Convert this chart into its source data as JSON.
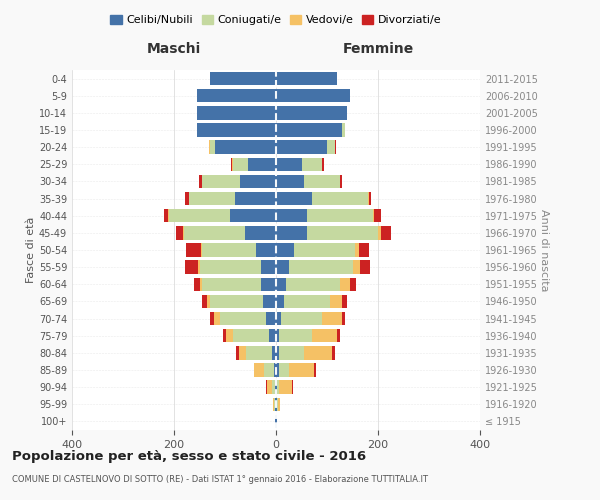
{
  "age_groups": [
    "100+",
    "95-99",
    "90-94",
    "85-89",
    "80-84",
    "75-79",
    "70-74",
    "65-69",
    "60-64",
    "55-59",
    "50-54",
    "45-49",
    "40-44",
    "35-39",
    "30-34",
    "25-29",
    "20-24",
    "15-19",
    "10-14",
    "5-9",
    "0-4"
  ],
  "birth_years": [
    "≤ 1915",
    "1916-1920",
    "1921-1925",
    "1926-1930",
    "1931-1935",
    "1936-1940",
    "1941-1945",
    "1946-1950",
    "1951-1955",
    "1956-1960",
    "1961-1965",
    "1966-1970",
    "1971-1975",
    "1976-1980",
    "1981-1985",
    "1986-1990",
    "1991-1995",
    "1996-2000",
    "2001-2005",
    "2006-2010",
    "2011-2015"
  ],
  "maschi": {
    "celibi": [
      1,
      1,
      2,
      4,
      8,
      14,
      20,
      25,
      30,
      30,
      40,
      60,
      90,
      80,
      70,
      55,
      120,
      155,
      155,
      155,
      130
    ],
    "coniugati": [
      0,
      2,
      5,
      20,
      50,
      70,
      90,
      105,
      115,
      120,
      105,
      120,
      120,
      90,
      75,
      30,
      10,
      0,
      0,
      0,
      0
    ],
    "vedovi": [
      0,
      3,
      10,
      20,
      15,
      15,
      12,
      5,
      4,
      3,
      2,
      2,
      2,
      1,
      1,
      1,
      2,
      0,
      0,
      0,
      0
    ],
    "divorziati": [
      0,
      0,
      2,
      0,
      5,
      5,
      8,
      10,
      12,
      25,
      30,
      15,
      8,
      8,
      5,
      2,
      0,
      0,
      0,
      0,
      0
    ]
  },
  "femmine": {
    "nubili": [
      1,
      1,
      1,
      5,
      5,
      5,
      10,
      15,
      20,
      25,
      35,
      60,
      60,
      70,
      55,
      50,
      100,
      130,
      140,
      145,
      120
    ],
    "coniugate": [
      0,
      2,
      5,
      20,
      50,
      65,
      80,
      90,
      105,
      125,
      120,
      140,
      130,
      110,
      70,
      40,
      15,
      5,
      0,
      0,
      0
    ],
    "vedove": [
      1,
      5,
      25,
      50,
      55,
      50,
      40,
      25,
      20,
      15,
      8,
      5,
      3,
      2,
      1,
      1,
      1,
      0,
      0,
      0,
      0
    ],
    "divorziate": [
      0,
      0,
      2,
      3,
      5,
      5,
      5,
      10,
      12,
      20,
      20,
      20,
      12,
      5,
      3,
      3,
      2,
      0,
      0,
      0,
      0
    ]
  },
  "colors": {
    "celibi": "#4472a8",
    "coniugati": "#c5d9a0",
    "vedovi": "#f5c165",
    "divorziati": "#cc2222"
  },
  "xlim": 400,
  "title": "Popolazione per età, sesso e stato civile - 2016",
  "subtitle": "COMUNE DI CASTELNOVO DI SOTTO (RE) - Dati ISTAT 1° gennaio 2016 - Elaborazione TUTTITALIA.IT",
  "legend_labels": [
    "Celibi/Nubili",
    "Coniugati/e",
    "Vedovi/e",
    "Divorziati/e"
  ],
  "xlabel_left": "Maschi",
  "xlabel_right": "Femmine",
  "ylabel_left": "Fasce di età",
  "ylabel_right": "Anni di nascita",
  "bg_color": "#f9f9f9",
  "plot_bg": "#ffffff"
}
